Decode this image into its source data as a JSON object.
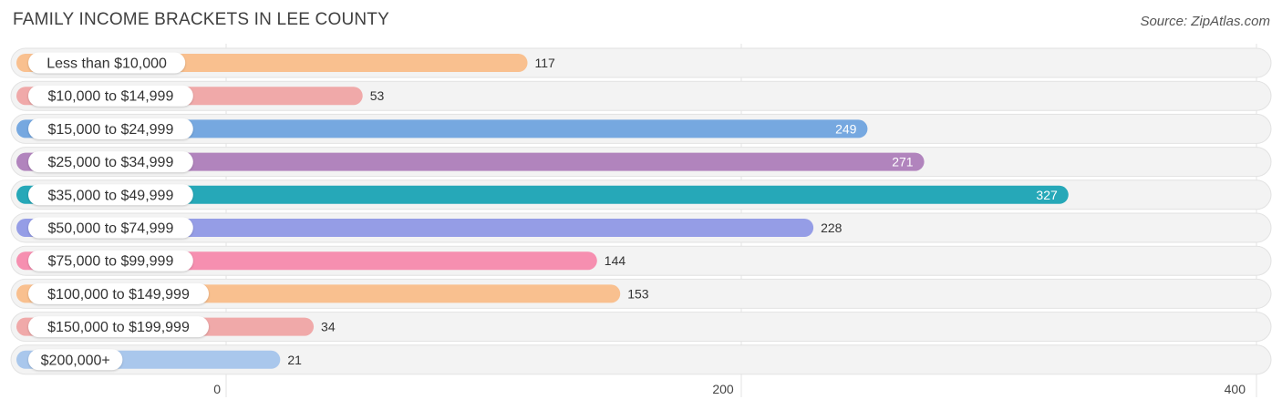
{
  "title": "FAMILY INCOME BRACKETS IN LEE COUNTY",
  "source": "Source: ZipAtlas.com",
  "chart_data": {
    "type": "bar",
    "orientation": "horizontal",
    "title": "FAMILY INCOME BRACKETS IN LEE COUNTY",
    "xlabel": "",
    "ylabel": "",
    "xlim": [
      0,
      400
    ],
    "xticks": [
      0,
      200,
      400
    ],
    "grid": true,
    "categories": [
      "Less than $10,000",
      "$10,000 to $14,999",
      "$15,000 to $24,999",
      "$25,000 to $34,999",
      "$35,000 to $49,999",
      "$50,000 to $74,999",
      "$75,000 to $99,999",
      "$100,000 to $149,999",
      "$150,000 to $199,999",
      "$200,000+"
    ],
    "values": [
      117,
      53,
      249,
      271,
      327,
      228,
      144,
      153,
      34,
      21
    ],
    "colors": [
      "#f9c08f",
      "#f0a9a9",
      "#76a8e0",
      "#b184bd",
      "#26a8b8",
      "#959de6",
      "#f68fb0",
      "#f9c08f",
      "#f0a9a9",
      "#a9c7ec"
    ],
    "value_label_inside": [
      false,
      false,
      true,
      true,
      true,
      false,
      false,
      false,
      false,
      false
    ]
  }
}
